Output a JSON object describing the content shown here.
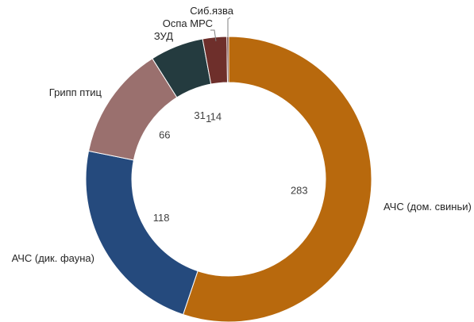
{
  "chart_data": {
    "type": "pie",
    "subtype": "donut",
    "categories": [
      "АЧС (дом. свиньи)",
      "АЧС (дик. фауна)",
      "Грипп птиц",
      "ЗУД",
      "Оспа МРС",
      "Сиб.язва"
    ],
    "values": [
      283,
      118,
      66,
      31,
      14,
      1
    ],
    "value_labels": [
      "283",
      "118",
      "66",
      "31",
      "14",
      "1"
    ],
    "colors": [
      "#b8690d",
      "#254a7d",
      "#9a706e",
      "#243b3f",
      "#6e2f2b",
      "#4a1512"
    ],
    "legend": "none"
  }
}
